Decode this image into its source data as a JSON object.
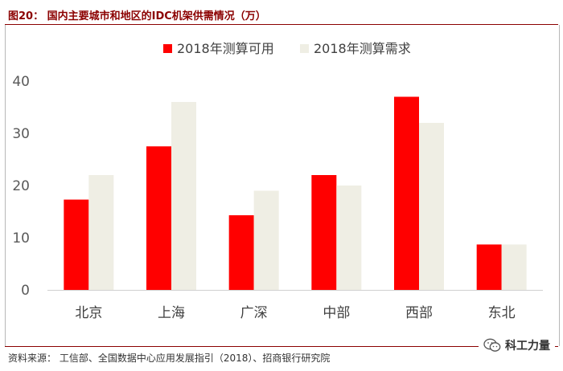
{
  "figure": {
    "title": "图20：  国内主要城市和地区的IDC机架供需情况（万）",
    "source": "资料来源：  工信部、全国数据中心应用发展指引（2018）、招商银行研究院"
  },
  "brand": {
    "icon": "wechat-icon",
    "name": "科工力量"
  },
  "colors": {
    "accent": "#8b0000",
    "series_available": "#ff0000",
    "series_demand": "#efeee4"
  },
  "chart_data": {
    "type": "bar",
    "title": "",
    "xlabel": "",
    "ylabel": "",
    "categories": [
      "北京",
      "上海",
      "广深",
      "中部",
      "西部",
      "东北"
    ],
    "series": [
      {
        "name": "2018年测算可用",
        "values": [
          17.3,
          27.5,
          14.3,
          22,
          37,
          8.7
        ],
        "color": "#ff0000"
      },
      {
        "name": "2018年测算需求",
        "values": [
          22,
          36,
          19,
          20,
          32,
          8.7
        ],
        "color": "#efeee4"
      }
    ],
    "ylim": [
      0,
      40
    ],
    "yticks": [
      0,
      10,
      20,
      30,
      40
    ],
    "grid": false,
    "legend": "top-center"
  }
}
